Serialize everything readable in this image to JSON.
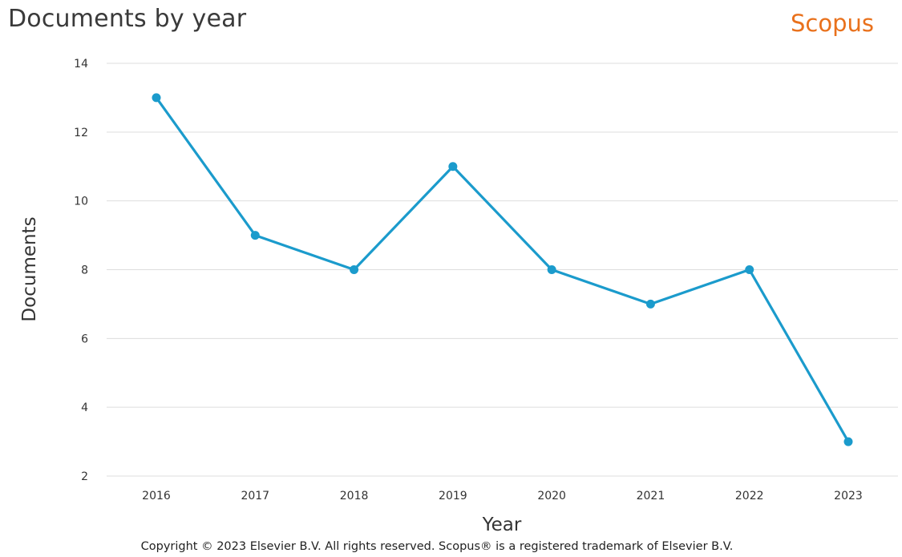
{
  "header": {
    "title": "Documents by year",
    "brand": "Scopus"
  },
  "footer": {
    "copyright": "Copyright © 2023 Elsevier B.V. All rights reserved. Scopus® is a registered trademark of Elsevier B.V."
  },
  "chart_data": {
    "type": "line",
    "title": "Documents by year",
    "xlabel": "Year",
    "ylabel": "Documents",
    "categories": [
      "2016",
      "2017",
      "2018",
      "2019",
      "2020",
      "2021",
      "2022",
      "2023"
    ],
    "series": [
      {
        "values": [
          13,
          9,
          8,
          11,
          8,
          7,
          8,
          3
        ]
      }
    ],
    "ylim": [
      2,
      14
    ],
    "yticks": [
      2,
      4,
      6,
      8,
      10,
      12,
      14
    ],
    "grid": "horizontal",
    "legend": "none",
    "line_color": "#1b9bcc"
  }
}
